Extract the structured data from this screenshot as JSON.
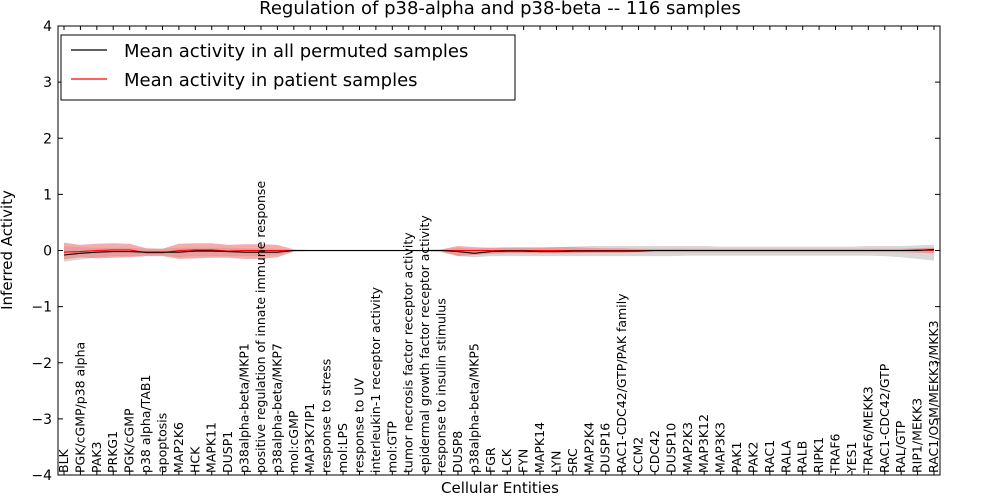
{
  "chart_data": {
    "type": "line",
    "title": "Regulation of p38-alpha and p38-beta -- 116 samples",
    "xlabel": "Cellular Entities",
    "ylabel": "Inferred Activity",
    "ylim": [
      -4,
      4
    ],
    "yticks": [
      -4,
      -3,
      -2,
      -1,
      0,
      1,
      2,
      3,
      4
    ],
    "ytick_labels": [
      "−4",
      "−3",
      "−2",
      "−1",
      "0",
      "1",
      "2",
      "3",
      "4"
    ],
    "grid": false,
    "legend_position": "top-left",
    "categories": [
      "BLK",
      "PGK/cGMP/p38 alpha",
      "PAK3",
      "PRKG1",
      "PGK/cGMP",
      "p38 alpha/TAB1",
      "apoptosis",
      "MAP2K6",
      "HCK",
      "MAPK11",
      "DUSP1",
      "p38alpha-beta/MKP1",
      "positive regulation of innate immune response",
      "p38alpha-beta/MKP7",
      "mol:cGMP",
      "MAP3K7IP1",
      "response to stress",
      "mol:LPS",
      "response to UV",
      "interleukin-1 receptor activity",
      "mol:GTP",
      "tumor necrosis factor receptor activity",
      "epidermal growth factor receptor activity",
      "response to insulin stimulus",
      "DUSP8",
      "p38alpha-beta/MKP5",
      "FGR",
      "LCK",
      "FYN",
      "MAPK14",
      "LYN",
      "SRC",
      "MAP2K4",
      "DUSP16",
      "RAC1-CDC42/GTP/PAK family",
      "CCM2",
      "CDC42",
      "DUSP10",
      "MAP2K3",
      "MAP3K12",
      "MAP3K3",
      "PAK1",
      "PAK2",
      "RAC1",
      "RALA",
      "RALB",
      "RIPK1",
      "TRAF6",
      "YES1",
      "TRAF6/MEKK3",
      "RAC1-CDC42/GTP",
      "RAL/GTP",
      "RIP1/MEKK3",
      "RAC1/OSM/MEKK3/MKK3"
    ],
    "series": [
      {
        "name": "Mean activity in all permuted samples",
        "color": "#000000",
        "values": [
          -0.08,
          -0.05,
          -0.03,
          -0.02,
          -0.02,
          -0.03,
          -0.03,
          -0.03,
          -0.01,
          -0.01,
          -0.02,
          -0.03,
          -0.03,
          -0.03,
          0.0,
          0.0,
          0.0,
          0.0,
          0.0,
          0.0,
          0.0,
          0.0,
          0.0,
          0.0,
          -0.02,
          -0.05,
          -0.02,
          -0.01,
          -0.01,
          -0.02,
          -0.02,
          -0.01,
          -0.01,
          -0.01,
          -0.01,
          -0.01,
          0.0,
          0.0,
          0.0,
          0.0,
          0.0,
          0.0,
          0.0,
          0.0,
          0.0,
          0.0,
          0.0,
          0.0,
          0.0,
          0.0,
          0.0,
          0.0,
          0.0,
          0.02
        ],
        "band_upper": [
          0.08,
          0.06,
          0.05,
          0.05,
          0.05,
          0.03,
          0.03,
          0.05,
          0.05,
          0.05,
          0.05,
          0.04,
          0.04,
          0.03,
          0.01,
          0.01,
          0.01,
          0.01,
          0.01,
          0.01,
          0.01,
          0.01,
          0.01,
          0.02,
          0.05,
          0.03,
          0.05,
          0.06,
          0.06,
          0.06,
          0.06,
          0.07,
          0.08,
          0.08,
          0.08,
          0.08,
          0.08,
          0.08,
          0.08,
          0.08,
          0.07,
          0.07,
          0.07,
          0.07,
          0.07,
          0.07,
          0.07,
          0.07,
          0.07,
          0.08,
          0.08,
          0.08,
          0.09,
          0.1
        ],
        "band_lower": [
          -0.2,
          -0.16,
          -0.12,
          -0.1,
          -0.1,
          -0.09,
          -0.09,
          -0.12,
          -0.1,
          -0.1,
          -0.1,
          -0.1,
          -0.09,
          -0.08,
          -0.02,
          -0.02,
          -0.02,
          -0.02,
          -0.02,
          -0.02,
          -0.02,
          -0.02,
          -0.02,
          -0.03,
          -0.1,
          -0.12,
          -0.1,
          -0.1,
          -0.1,
          -0.1,
          -0.1,
          -0.1,
          -0.1,
          -0.1,
          -0.1,
          -0.1,
          -0.1,
          -0.1,
          -0.09,
          -0.09,
          -0.09,
          -0.09,
          -0.09,
          -0.09,
          -0.09,
          -0.09,
          -0.09,
          -0.09,
          -0.09,
          -0.09,
          -0.1,
          -0.12,
          -0.15,
          -0.18
        ],
        "band_color": "#c8c8c8"
      },
      {
        "name": "Mean activity in patient samples",
        "color": "#ff0000",
        "values": [
          -0.03,
          -0.02,
          0.0,
          0.01,
          0.01,
          -0.04,
          -0.04,
          0.0,
          0.01,
          0.01,
          -0.01,
          0.0,
          0.0,
          0.0,
          0.0,
          0.0,
          0.0,
          0.0,
          0.0,
          0.0,
          0.0,
          0.0,
          0.0,
          0.0,
          0.0,
          0.0,
          0.0,
          0.0,
          0.0,
          0.0,
          0.0,
          0.0,
          0.0,
          0.0,
          0.0,
          0.0,
          0.0,
          0.0,
          0.0,
          0.0,
          0.0,
          0.0,
          0.0,
          0.0,
          0.0,
          0.0,
          0.0,
          0.0,
          0.0,
          0.0,
          0.0,
          0.0,
          0.01,
          0.0
        ],
        "band_upper": [
          0.14,
          0.1,
          0.12,
          0.13,
          0.12,
          0.04,
          0.03,
          0.12,
          0.13,
          0.13,
          0.1,
          0.11,
          0.11,
          0.1,
          0.02,
          0.01,
          0.01,
          0.01,
          0.01,
          0.01,
          0.01,
          0.01,
          0.01,
          0.02,
          0.08,
          0.06,
          0.05,
          0.05,
          0.05,
          0.05,
          0.06,
          0.06,
          0.05,
          0.04,
          0.04,
          0.03,
          0.03,
          0.03,
          0.03,
          0.03,
          0.03,
          0.03,
          0.03,
          0.03,
          0.03,
          0.03,
          0.03,
          0.03,
          0.03,
          0.03,
          0.03,
          0.03,
          0.04,
          0.05
        ],
        "band_lower": [
          -0.16,
          -0.12,
          -0.14,
          -0.13,
          -0.12,
          -0.1,
          -0.1,
          -0.15,
          -0.14,
          -0.13,
          -0.13,
          -0.15,
          -0.15,
          -0.12,
          -0.02,
          -0.01,
          -0.01,
          -0.01,
          -0.01,
          -0.01,
          -0.01,
          -0.01,
          -0.01,
          -0.02,
          -0.1,
          -0.08,
          -0.06,
          -0.05,
          -0.05,
          -0.05,
          -0.05,
          -0.05,
          -0.04,
          -0.04,
          -0.04,
          -0.03,
          -0.03,
          -0.03,
          -0.03,
          -0.03,
          -0.03,
          -0.03,
          -0.03,
          -0.03,
          -0.03,
          -0.03,
          -0.03,
          -0.03,
          -0.03,
          -0.03,
          -0.03,
          -0.03,
          -0.04,
          -0.05
        ],
        "band_color": "#f08080"
      }
    ]
  }
}
